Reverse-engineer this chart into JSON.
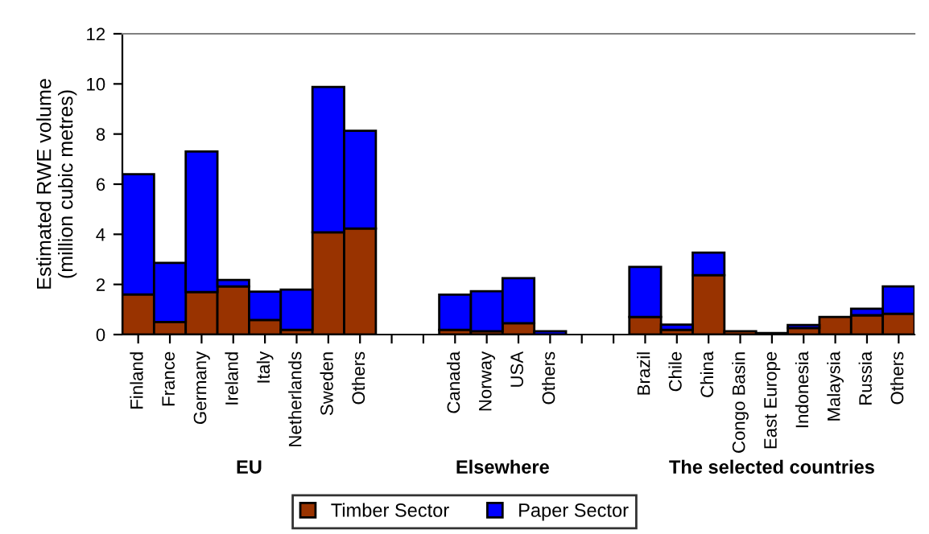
{
  "chart_data": {
    "type": "bar",
    "stacked": true,
    "ylabel": "Estimated RWE volume\n(million cubic metres)",
    "categories": [
      "Finland",
      "France",
      "Germany",
      "Ireland",
      "Italy",
      "Netherlands",
      "Sweden",
      "Others",
      null,
      null,
      "Canada",
      "Norway",
      "USA",
      "Others",
      null,
      null,
      "Brazil",
      "Chile",
      "China",
      "Congo Basin",
      "East Europe",
      "Indonesia",
      "Malaysia",
      "Russia",
      "Others"
    ],
    "series": [
      {
        "name": "Timber Sector",
        "color": "#993300",
        "values": [
          1.6,
          0.5,
          1.7,
          1.92,
          0.58,
          0.19,
          4.08,
          4.23,
          null,
          null,
          0.19,
          0.13,
          0.45,
          0,
          null,
          null,
          0.7,
          0.19,
          2.37,
          0.13,
          0.06,
          0.26,
          0.7,
          0.77,
          0.83
        ]
      },
      {
        "name": "Paper Sector",
        "color": "#0000ff",
        "values": [
          4.8,
          2.36,
          5.6,
          0.26,
          1.13,
          1.6,
          5.8,
          3.9,
          null,
          null,
          1.4,
          1.6,
          1.8,
          0.13,
          null,
          null,
          2.0,
          0.21,
          0.9,
          null,
          null,
          0.12,
          null,
          0.26,
          1.09
        ]
      }
    ],
    "ylim": [
      0,
      12
    ],
    "yticks": [
      0,
      2,
      4,
      6,
      8,
      10,
      12
    ],
    "annotations": [
      "EU",
      "Elsewhere",
      "The selected countries"
    ],
    "legend": "bottom",
    "grid": false
  }
}
